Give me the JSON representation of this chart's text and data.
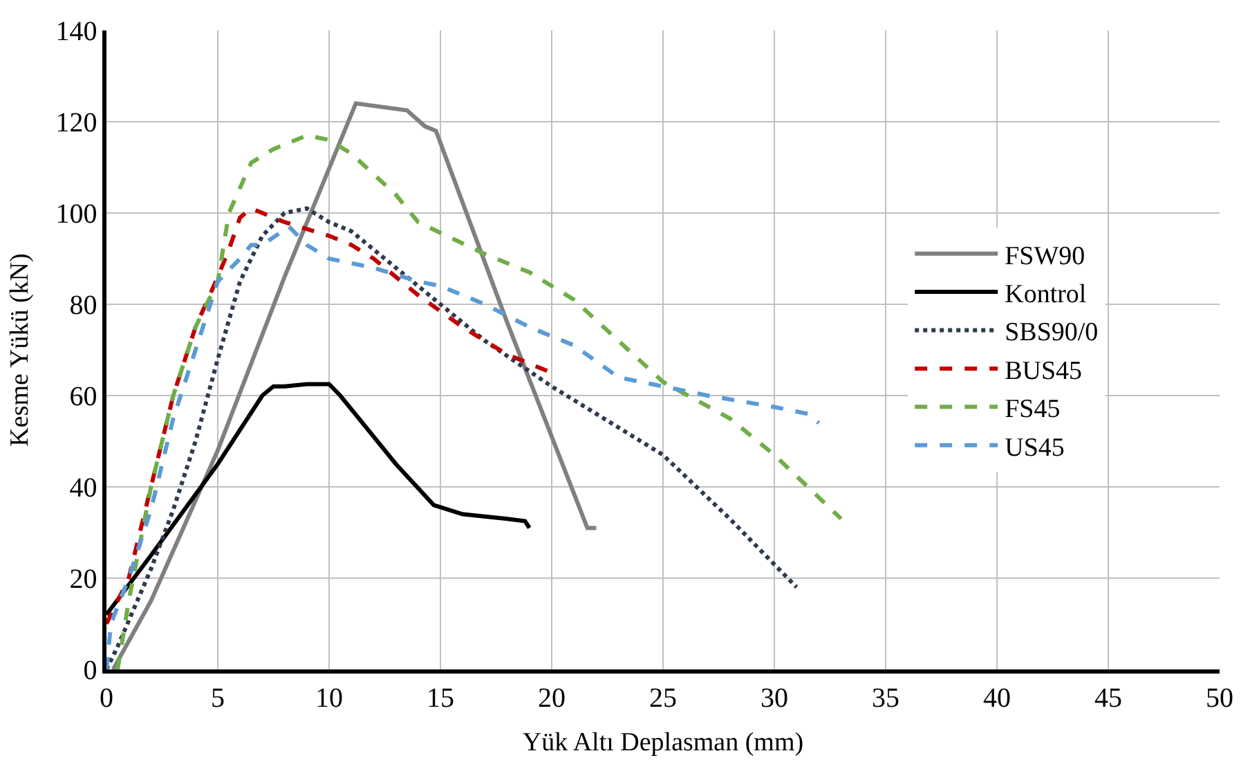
{
  "chart_data": {
    "type": "line",
    "xlabel": "Yük Altı Deplasman (mm)",
    "ylabel": "Kesme Yükü (kN)",
    "xlim": [
      0,
      50
    ],
    "xticks": [
      0,
      5,
      10,
      15,
      20,
      25,
      30,
      35,
      40,
      45,
      50
    ],
    "ylim": [
      0,
      140
    ],
    "yticks": [
      0,
      20,
      40,
      60,
      80,
      100,
      120,
      140
    ],
    "grid": true,
    "legend": "right",
    "marker": "none",
    "series": [
      {
        "name": "FSW90",
        "color": "#808080",
        "line_style": "solid",
        "x": [
          0.3,
          2,
          5,
          8,
          11.2,
          13.5,
          14.3,
          14.8,
          18,
          21.6,
          22
        ],
        "values": [
          0,
          15,
          48,
          86,
          124,
          122.5,
          119,
          118,
          76,
          31,
          31
        ]
      },
      {
        "name": "Kontrol",
        "color": "#000000",
        "line_style": "solid",
        "x": [
          0,
          2,
          5,
          7,
          7.5,
          8,
          9,
          10,
          10.5,
          13,
          14.7,
          16,
          18,
          18.8,
          19
        ],
        "values": [
          12,
          25,
          45,
          60,
          62,
          62,
          62.5,
          62.5,
          60,
          45,
          36,
          34,
          33,
          32.5,
          31
        ]
      },
      {
        "name": "SBS90/0",
        "color": "#2e3a4e",
        "line_style": "dotted",
        "x": [
          0,
          0.5,
          2,
          3,
          4,
          5,
          6,
          7,
          8,
          9,
          10,
          11,
          12,
          13,
          15,
          17,
          20,
          25,
          28,
          31
        ],
        "values": [
          0,
          5,
          22,
          35,
          50,
          68,
          85,
          95,
          100,
          101,
          98,
          96,
          92,
          88,
          80,
          72,
          62,
          47,
          33,
          18
        ]
      },
      {
        "name": "BUS45",
        "color": "#c00000",
        "line_style": "dashed",
        "x": [
          0,
          1,
          2,
          3,
          4,
          5,
          5.5,
          6,
          6.5,
          8,
          10,
          11,
          12,
          14,
          16,
          18,
          20
        ],
        "values": [
          10,
          20,
          40,
          60,
          75,
          86,
          92,
          99,
          101,
          98,
          95,
          93,
          90,
          82,
          75,
          69,
          65
        ]
      },
      {
        "name": "FS45",
        "color": "#70ad47",
        "line_style": "dashed",
        "x": [
          0.5,
          1,
          2,
          3,
          4,
          5,
          5.5,
          6.5,
          7.5,
          9,
          10,
          11,
          13,
          14,
          17,
          19,
          21,
          25,
          28,
          30,
          33
        ],
        "values": [
          0,
          15,
          40,
          60,
          75,
          85,
          100,
          111,
          114,
          117,
          116,
          113,
          104,
          98,
          91,
          87,
          81,
          63,
          55,
          47,
          33
        ]
      },
      {
        "name": "US45",
        "color": "#5b9bd5",
        "line_style": "dashed",
        "x": [
          0,
          0.2,
          1,
          2,
          3,
          4,
          5,
          6,
          6.5,
          7,
          8.2,
          9,
          10,
          12,
          14,
          15,
          17,
          19,
          21,
          23,
          25,
          27,
          30,
          31.5,
          32
        ],
        "values": [
          0,
          10,
          20,
          35,
          55,
          70,
          85,
          90,
          93,
          93,
          97,
          93,
          90,
          88,
          85,
          84,
          80,
          75,
          71,
          64,
          62,
          60,
          57.5,
          56,
          54
        ]
      }
    ]
  }
}
